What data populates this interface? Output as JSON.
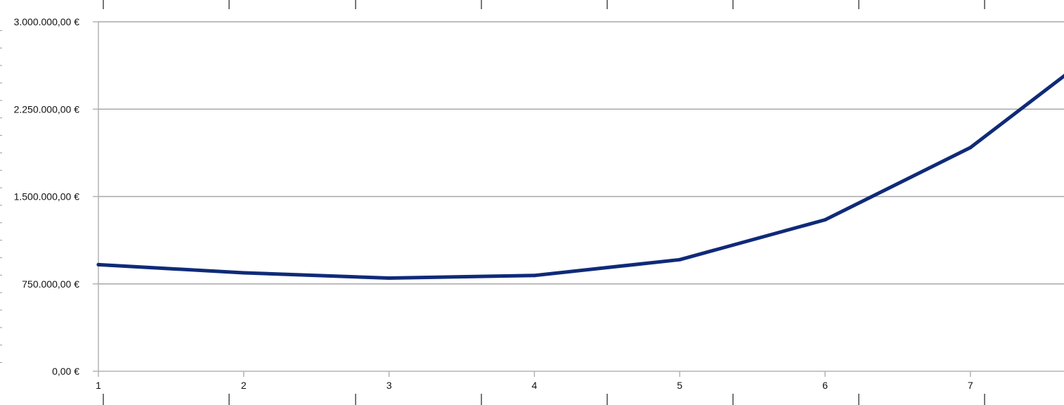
{
  "chart_data": {
    "type": "line",
    "title": "",
    "xlabel": "",
    "ylabel": "",
    "x": [
      1,
      2,
      3,
      4,
      5,
      6,
      7,
      7.65
    ],
    "x_tick_labels": [
      "1",
      "2",
      "3",
      "4",
      "5",
      "6",
      "7"
    ],
    "series": [
      {
        "name": "",
        "color": "#0f2a78",
        "values": [
          915000,
          845000,
          800000,
          822000,
          958000,
          1300000,
          1920000,
          2540000
        ]
      }
    ],
    "ylim": [
      0,
      3000000
    ],
    "xlim": [
      1,
      7.65
    ],
    "y_ticks": [
      0,
      750000,
      1500000,
      2250000,
      3000000
    ],
    "y_tick_labels": [
      "0,00 €",
      "750.000,00 €",
      "1.500.000,00 €",
      "2.250.000,00 €",
      "3.000.000,00 €"
    ],
    "grid": true,
    "legend": "none"
  }
}
